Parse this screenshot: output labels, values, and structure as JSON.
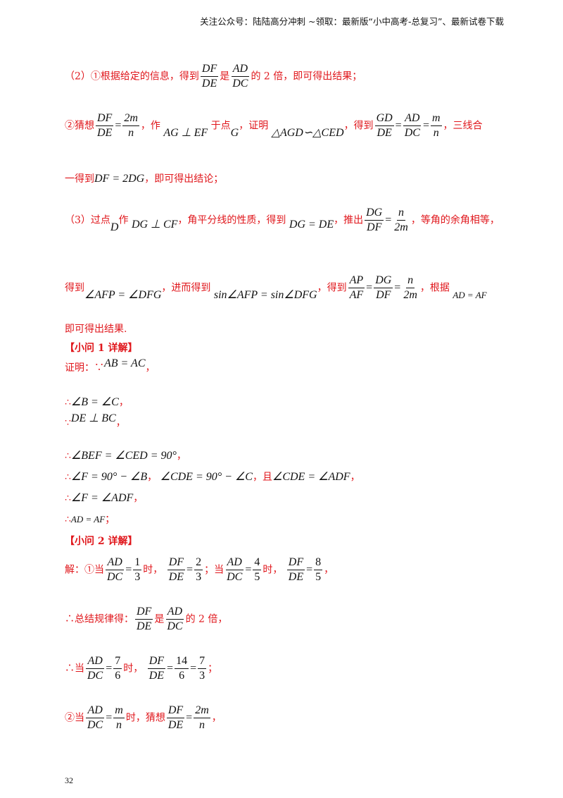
{
  "header": "关注公众号：陆陆高分冲刺  ~领取：最新版“小中高考-总复习”、最新试卷下载",
  "page_number": "32",
  "p2_1": {
    "pre": "（2）①根据给定的信息，得到",
    "mid": "是",
    "post": "的 2 倍，即可得出结果；",
    "f1n": "DF",
    "f1d": "DE",
    "f2n": "AD",
    "f2d": "DC"
  },
  "p2_2": {
    "a": "②猜想",
    "f1n": "DF",
    "f1d": "DE",
    "eq1": "=",
    "f2n": "2m",
    "f2d": "n",
    "b": "，作",
    "perp": "AG ⊥ EF",
    "c": "于点",
    "g": "G",
    "d": "，证明",
    "sim": "△AGD∽△CED",
    "e": "，得到",
    "f3n": "GD",
    "f3d": "DE",
    "f4n": "AD",
    "f4d": "DC",
    "f5n": "m",
    "f5d": "n",
    "f": "，三线合"
  },
  "p2_3": {
    "a": "一得到",
    "expr": "DF = 2DG",
    "b": "，即可得出结论；"
  },
  "p3_1": {
    "a": "（3）过点",
    "d": "D",
    "b": "作",
    "perp": "DG ⊥ CF",
    "c": "，角平分线的性质，得到",
    "eq": "DG = DE",
    "e": "，推出",
    "f1n": "DG",
    "f1d": "DF",
    "f2n": "n",
    "f2d": "2m",
    "f": "，等角的余角相等，"
  },
  "p3_2": {
    "a": "得到",
    "ang": "∠AFP = ∠DFG",
    "b": "，进而得到",
    "sin": "sin∠AFP = sin∠DFG",
    "c": "，得到",
    "f1n": "AP",
    "f1d": "AF",
    "f2n": "DG",
    "f2d": "DF",
    "f3n": "n",
    "f3d": "2m",
    "d": "，根据",
    "ad": "AD = AF"
  },
  "p3_3": "即可得出结果.",
  "q1_title": "【小问 1 详解】",
  "q1": {
    "l1a": "证明：∵",
    "l1m": "AB = AC",
    "l1b": "，",
    "l2a": "∴",
    "l2m": "∠B = ∠C",
    "l2b": "，",
    "l3a": "∵",
    "l3m": "DE ⊥ BC",
    "l3b": "，",
    "l4a": "∴",
    "l4m": "∠BEF = ∠CED = 90°",
    "l4b": "，",
    "l5a": "∴",
    "l5m": "∠F = 90° − ∠B",
    "l5b": "，",
    "l5m2": "∠CDE = 90° − ∠C",
    "l5c": "，且",
    "l5m3": "∠CDE = ∠ADF",
    "l5d": "，",
    "l6a": "∴",
    "l6m": "∠F = ∠ADF",
    "l6b": "，",
    "l7a": "∴",
    "l7m": "AD = AF",
    "l7b": "；"
  },
  "q2_title": "【小问 2 详解】",
  "q2": {
    "l1a": "解：①当",
    "f1n": "AD",
    "f1d": "DC",
    "f1vn": "1",
    "f1vd": "3",
    "t1": "时，",
    "f2n": "DF",
    "f2d": "DE",
    "f2vn": "2",
    "f2vd": "3",
    "t2": "；当",
    "f3n": "AD",
    "f3d": "DC",
    "f3vn": "4",
    "f3vd": "5",
    "t3": "时，",
    "f4n": "DF",
    "f4d": "DE",
    "f4vn": "8",
    "f4vd": "5",
    "t4": "，",
    "l2a": "∴总结规律得：",
    "l2f1n": "DF",
    "l2f1d": "DE",
    "l2b": "是",
    "l2f2n": "AD",
    "l2f2d": "DC",
    "l2c": "的 2 倍，",
    "l3a": "∴当",
    "l3f1n": "AD",
    "l3f1d": "DC",
    "l3v1n": "7",
    "l3v1d": "6",
    "l3b": "时，",
    "l3f2n": "DF",
    "l3f2d": "DE",
    "l3v2n": "14",
    "l3v2d": "6",
    "l3v3n": "7",
    "l3v3d": "3",
    "l3c": "；",
    "l4a": "②当",
    "l4f1n": "AD",
    "l4f1d": "DC",
    "l4v1n": "m",
    "l4v1d": "n",
    "l4b": "时，猜想",
    "l4f2n": "DF",
    "l4f2d": "DE",
    "l4v2n": "2m",
    "l4v2d": "n",
    "l4c": "，"
  }
}
